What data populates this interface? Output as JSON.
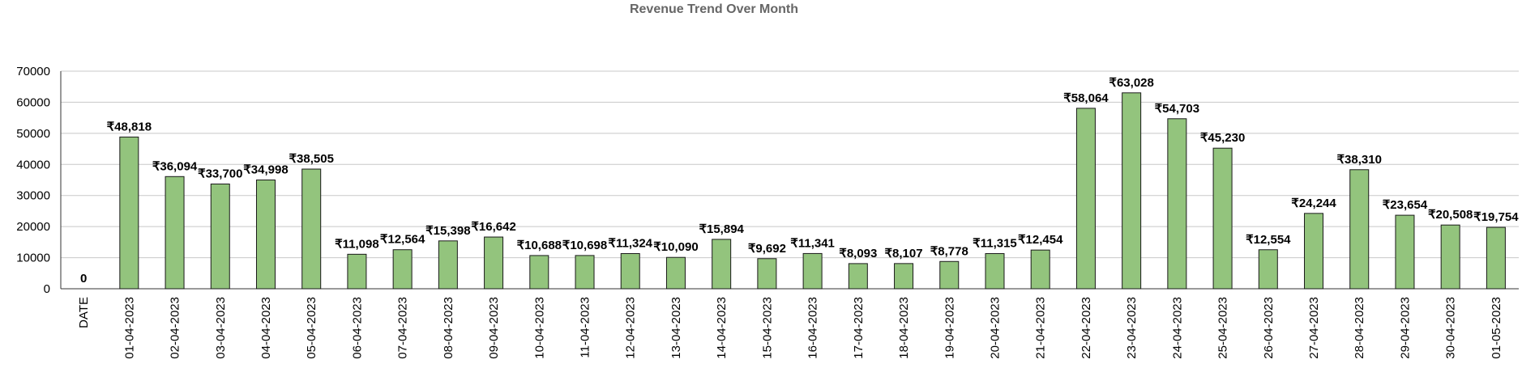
{
  "chart_data": {
    "type": "bar",
    "title": "",
    "subtitle": "Revenue Trend Over Month",
    "xlabel": "",
    "ylabel": "",
    "ylim": [
      0,
      70000
    ],
    "yticks": [
      "0",
      "10000",
      "20000",
      "30000",
      "40000",
      "50000",
      "60000",
      "70000"
    ],
    "grid": true,
    "legend": "none",
    "bar_color": "#93c47d",
    "categories": [
      "DATE",
      "01-04-2023",
      "02-04-2023",
      "03-04-2023",
      "04-04-2023",
      "05-04-2023",
      "06-04-2023",
      "07-04-2023",
      "08-04-2023",
      "09-04-2023",
      "10-04-2023",
      "11-04-2023",
      "12-04-2023",
      "13-04-2023",
      "14-04-2023",
      "15-04-2023",
      "16-04-2023",
      "17-04-2023",
      "18-04-2023",
      "19-04-2023",
      "20-04-2023",
      "21-04-2023",
      "22-04-2023",
      "23-04-2023",
      "24-04-2023",
      "25-04-2023",
      "26-04-2023",
      "27-04-2023",
      "28-04-2023",
      "29-04-2023",
      "30-04-2023",
      "01-05-2023"
    ],
    "values": [
      0,
      48818,
      36094,
      33700,
      34998,
      38505,
      11098,
      12564,
      15398,
      16642,
      10688,
      10698,
      11324,
      10090,
      15894,
      9692,
      11341,
      8093,
      8107,
      8778,
      11315,
      12454,
      58064,
      63028,
      54703,
      45230,
      12554,
      24244,
      38310,
      23654,
      20508,
      19754
    ],
    "data_labels": [
      "0",
      "₹48,818",
      "₹36,094",
      "₹33,700",
      "₹34,998",
      "₹38,505",
      "₹11,098",
      "₹12,564",
      "₹15,398",
      "₹16,642",
      "₹10,688",
      "₹10,698",
      "₹11,324",
      "₹10,090",
      "₹15,894",
      "₹9,692",
      "₹11,341",
      "₹8,093",
      "₹8,107",
      "₹8,778",
      "₹11,315",
      "₹12,454",
      "₹58,064",
      "₹63,028",
      "₹54,703",
      "₹45,230",
      "₹12,554",
      "₹24,244",
      "₹38,310",
      "₹23,654",
      "₹20,508",
      "₹19,754"
    ]
  }
}
